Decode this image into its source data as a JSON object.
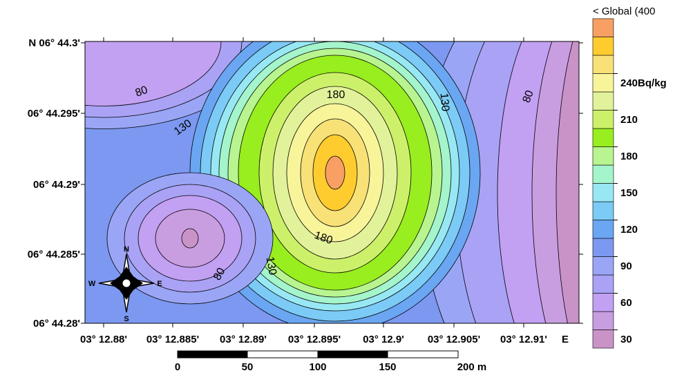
{
  "map": {
    "x_axis_labels": [
      "03° 12.88'",
      "03° 12.885'",
      "03° 12.89'",
      "03° 12.895'",
      "03° 12.9'",
      "03° 12.905'",
      "03° 12.91'"
    ],
    "x_axis_suffix": "E",
    "y_axis_labels": [
      "N 06° 44.3'",
      "06° 44.295'",
      "06° 44.29'",
      "06° 44.285'",
      "06° 44.28'"
    ],
    "contour_labels": [
      "80",
      "130",
      "180",
      "130",
      "80",
      "180",
      "130",
      "80"
    ]
  },
  "legend": {
    "header": "< Global (400",
    "ticks": [
      "30",
      "60",
      "90",
      "120",
      "150",
      "180",
      "210",
      "240Bq/kg"
    ],
    "colors": [
      "#c993c8",
      "#c89ee0",
      "#c2a0f2",
      "#aaa2f5",
      "#9aa6f5",
      "#7c98f0",
      "#6aa6f2",
      "#7ccaf6",
      "#98e8f4",
      "#a4f4cc",
      "#b8f490",
      "#98ee1e",
      "#cdf06a",
      "#e2f29a",
      "#f8f49a",
      "#f8e278",
      "#ffcc30",
      "#f8a064"
    ]
  },
  "compass": {
    "n": "N",
    "s": "S",
    "e": "E",
    "w": "W"
  },
  "scale_bar": {
    "labels": [
      "0",
      "50",
      "100",
      "150",
      "200 m"
    ]
  }
}
